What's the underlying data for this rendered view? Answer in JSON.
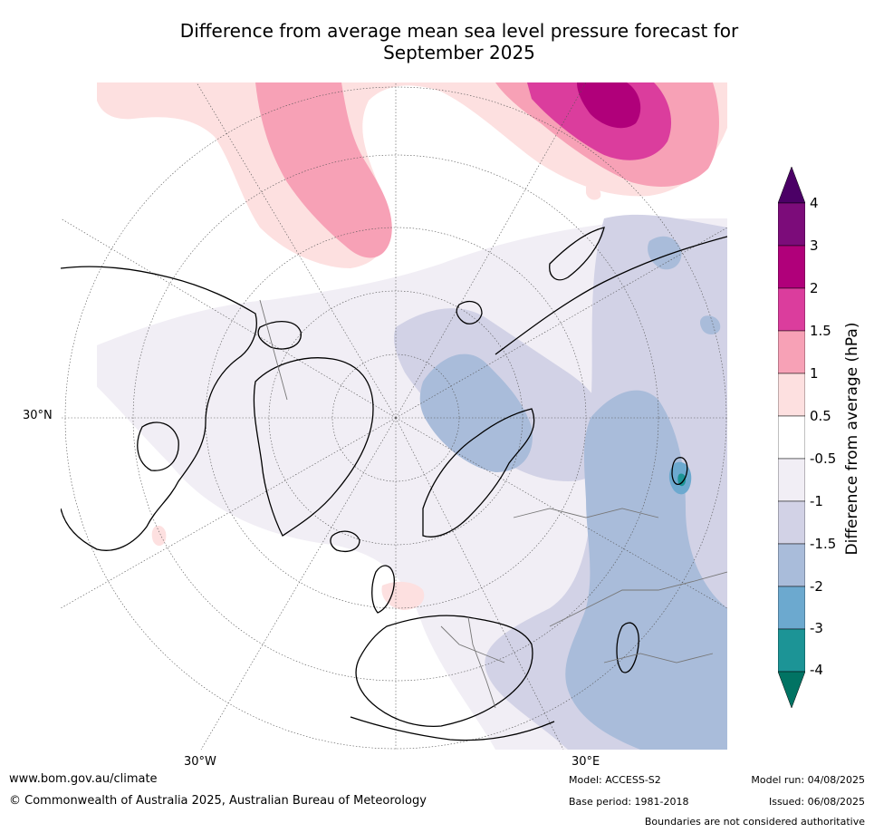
{
  "title_line1": "Difference from average mean sea level pressure forecast for",
  "title_line2": "September 2025",
  "map": {
    "lat_label": "30°N",
    "lon_labels": [
      "30°W",
      "30°E"
    ]
  },
  "legend": {
    "title": "Difference from average (hPa)",
    "ticks": [
      "4",
      "3",
      "2",
      "1.5",
      "1",
      "0.5",
      "-0.5",
      "-1",
      "-1.5",
      "-2",
      "-3",
      "-4"
    ],
    "colors": [
      "#4b0066",
      "#7c0c7a",
      "#b0007a",
      "#db3d9d",
      "#f7a1b6",
      "#fde0e0",
      "#ffffff",
      "#f1eef5",
      "#d2d2e6",
      "#a9bcda",
      "#6ca9cf",
      "#1c9496",
      "#017363"
    ]
  },
  "footer": {
    "website": "www.bom.gov.au/climate",
    "copyright": "© Commonwealth of Australia 2025, Australian Bureau of Meteorology",
    "model": "Model: ACCESS-S2",
    "base_period": "Base period: 1981-2018",
    "model_run": "Model run: 04/08/2025",
    "issued": "Issued: 06/08/2025",
    "disclaimer": "Boundaries are not considered authoritative"
  }
}
